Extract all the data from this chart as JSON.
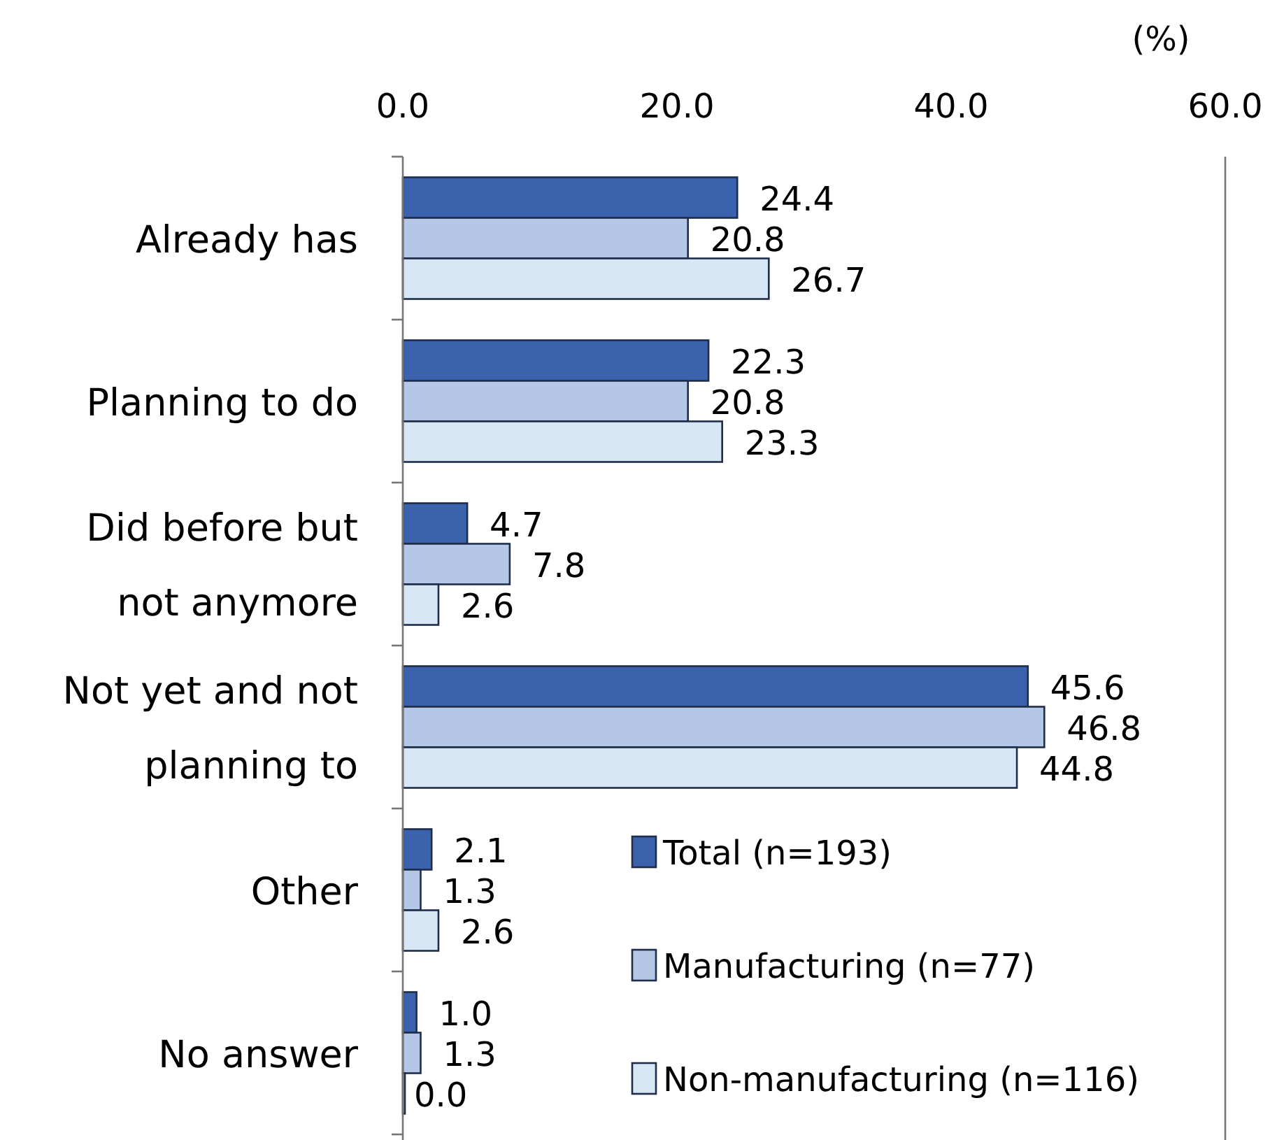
{
  "chart_data": {
    "type": "bar",
    "orientation": "horizontal",
    "xlabel": "(%)",
    "categories": [
      "Already has",
      "Planning to do",
      "Did before but not anymore",
      "Not yet and not planning to",
      "Other",
      "No answer"
    ],
    "series": [
      {
        "name": "Total (n=193)",
        "color": "#3a62ad",
        "values": [
          24.4,
          22.3,
          4.7,
          45.6,
          2.1,
          1.0
        ],
        "value_labels": [
          "24.4",
          "22.3",
          "4.7",
          "45.6",
          "2.1",
          "1.0"
        ]
      },
      {
        "name": "Manufacturing (n=77)",
        "color": "#b4c7e7",
        "values": [
          20.8,
          20.8,
          7.8,
          46.8,
          1.3,
          1.3
        ],
        "value_labels": [
          "20.8",
          "20.8",
          "7.8",
          "46.8",
          "1.3",
          "1.3"
        ]
      },
      {
        "name": "Non-manufacturing (n=116)",
        "color": "#d6e6f5",
        "values": [
          26.7,
          23.3,
          2.6,
          44.8,
          2.6,
          0.0
        ],
        "value_labels": [
          "26.7",
          "23.3",
          "2.6",
          "44.8",
          "2.6",
          "0.0"
        ]
      }
    ],
    "xlim": [
      0,
      60
    ],
    "xticks": [
      {
        "value": 0,
        "label": "0.0"
      },
      {
        "value": 20,
        "label": "20.0"
      },
      {
        "value": 40,
        "label": "40.0"
      },
      {
        "value": 60,
        "label": "60.0"
      }
    ],
    "legend": "bottom right",
    "grid": false
  }
}
